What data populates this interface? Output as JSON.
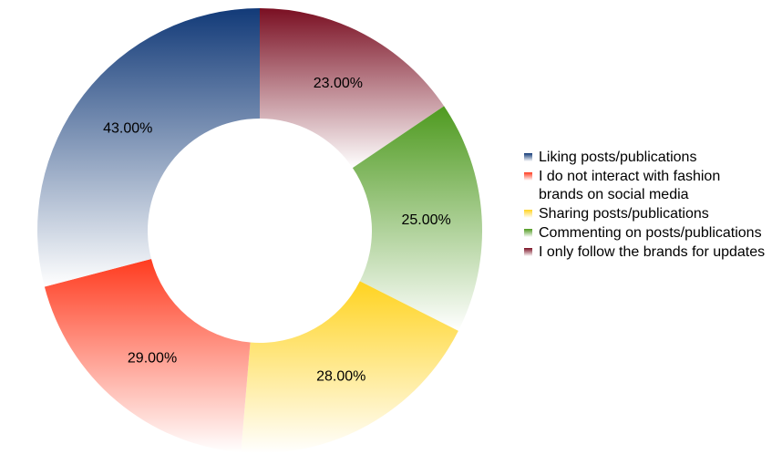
{
  "chart_data": {
    "type": "pie",
    "style": "donut",
    "slice_order": "clockwise-from-top",
    "legend_position": "right",
    "categories": [
      "I only follow the brands for updates",
      "Commenting on posts/publications",
      "Sharing posts/publications",
      "I do not interact with fashion brands on social media",
      "Liking posts/publications"
    ],
    "values": [
      23,
      25,
      28,
      29,
      43
    ],
    "labels": [
      "23.00%",
      "25.00%",
      "28.00%",
      "29.00%",
      "43.00%"
    ],
    "colors": [
      "#7a0f22",
      "#4e9a1f",
      "#ffd320",
      "#ff3b1f",
      "#123a78"
    ],
    "legend": [
      {
        "label": "Liking posts/publications",
        "color": "#123a78"
      },
      {
        "label": "I do not interact with fashion brands on social media",
        "color": "#ff3b1f"
      },
      {
        "label": "Sharing posts/publications",
        "color": "#ffd320"
      },
      {
        "label": "Commenting on posts/publications",
        "color": "#4e9a1f"
      },
      {
        "label": "I only follow the brands for updates",
        "color": "#7a0f22"
      }
    ]
  }
}
